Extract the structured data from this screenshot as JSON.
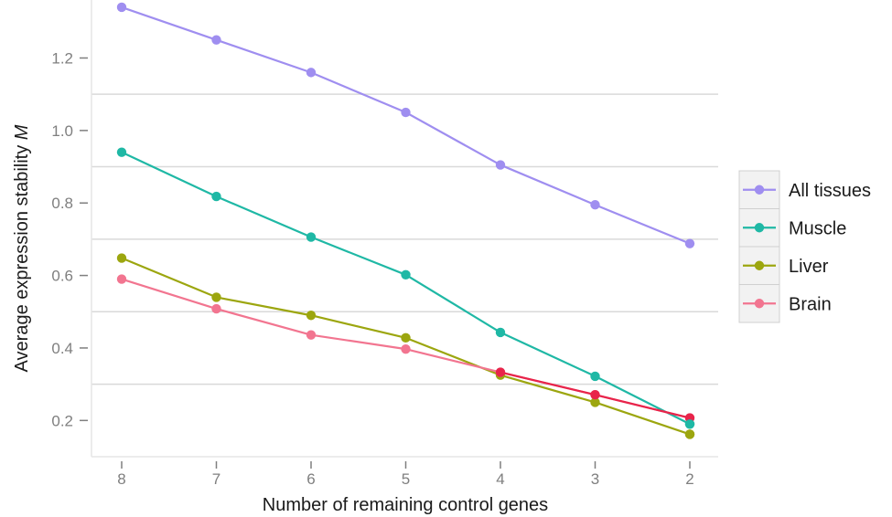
{
  "chart_data": {
    "type": "line",
    "title": "",
    "xlabel": "Number of remaining control genes",
    "ylabel_main": "Average expression stability ",
    "ylabel_symbol": "M",
    "x": [
      8,
      7,
      6,
      5,
      4,
      3,
      2
    ],
    "x_tick_labels": [
      "8",
      "7",
      "6",
      "5",
      "4",
      "3",
      "2"
    ],
    "y_ticks": [
      0.2,
      0.4,
      0.6,
      0.8,
      1.0,
      1.2
    ],
    "y_tick_labels": [
      "0.2",
      "0.4",
      "0.6",
      "0.8",
      "1.0",
      "1.2"
    ],
    "ylim": [
      0.1,
      1.36
    ],
    "grid": "horizontal-minor-only",
    "legend_position": "right",
    "series": [
      {
        "name": "All tissues",
        "color": "#9f8ef0",
        "values": [
          1.34,
          1.25,
          1.16,
          1.05,
          0.905,
          0.795,
          0.688
        ]
      },
      {
        "name": "Muscle",
        "color": "#1fb8a5",
        "values": [
          0.94,
          0.818,
          0.706,
          0.602,
          0.443,
          0.322,
          0.19
        ]
      },
      {
        "name": "Liver",
        "color": "#9ca60f",
        "values": [
          0.648,
          0.54,
          0.49,
          0.428,
          0.325,
          0.25,
          0.162
        ]
      },
      {
        "name": "Brain",
        "color": "#f27590",
        "values": [
          0.59,
          0.508,
          0.436,
          0.397,
          0.333,
          0.271,
          0.207
        ]
      }
    ],
    "overlap_segment_color": "#e8244a"
  }
}
